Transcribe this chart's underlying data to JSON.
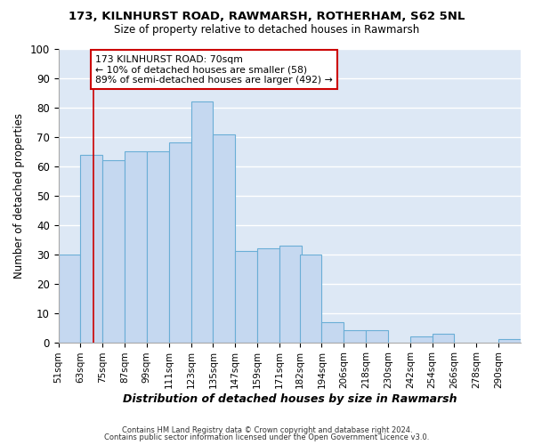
{
  "title1": "173, KILNHURST ROAD, RAWMARSH, ROTHERHAM, S62 5NL",
  "title2": "Size of property relative to detached houses in Rawmarsh",
  "xlabel": "Distribution of detached houses by size in Rawmarsh",
  "ylabel": "Number of detached properties",
  "bins": [
    "51sqm",
    "63sqm",
    "75sqm",
    "87sqm",
    "99sqm",
    "111sqm",
    "123sqm",
    "135sqm",
    "147sqm",
    "159sqm",
    "171sqm",
    "182sqm",
    "194sqm",
    "206sqm",
    "218sqm",
    "230sqm",
    "242sqm",
    "254sqm",
    "266sqm",
    "278sqm",
    "290sqm"
  ],
  "bin_left_edges": [
    51,
    63,
    75,
    87,
    99,
    111,
    123,
    135,
    147,
    159,
    171,
    182,
    194,
    206,
    218,
    230,
    242,
    254,
    266,
    278,
    290
  ],
  "bin_width": 12,
  "values": [
    30,
    64,
    62,
    65,
    65,
    68,
    82,
    71,
    31,
    32,
    33,
    30,
    7,
    4,
    4,
    0,
    2,
    3,
    0,
    0,
    1
  ],
  "bar_color": "#c5d8f0",
  "bar_edge_color": "#6aaed6",
  "red_line_x": 70,
  "annotation_text": "173 KILNHURST ROAD: 70sqm\n← 10% of detached houses are smaller (58)\n89% of semi-detached houses are larger (492) →",
  "annotation_box_facecolor": "#ffffff",
  "annotation_border_color": "#cc0000",
  "footer1": "Contains HM Land Registry data © Crown copyright and database right 2024.",
  "footer2": "Contains public sector information licensed under the Open Government Licence v3.0.",
  "ylim": [
    0,
    100
  ],
  "xlim_left": 51,
  "xlim_right": 302,
  "bg_color": "#dde8f5",
  "fig_bg_color": "#ffffff",
  "grid_color": "#ffffff",
  "yticks": [
    0,
    10,
    20,
    30,
    40,
    50,
    60,
    70,
    80,
    90,
    100
  ]
}
